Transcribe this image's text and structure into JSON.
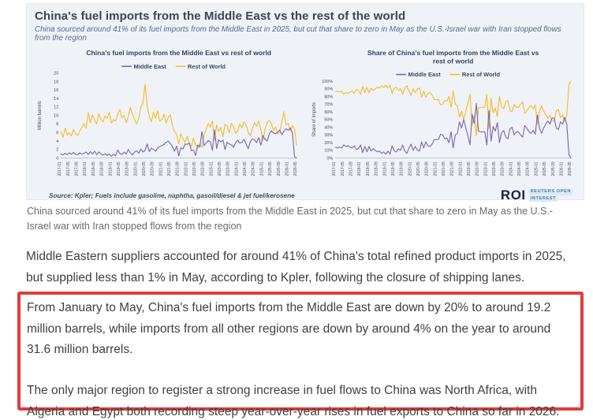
{
  "colors": {
    "accent_red": "#e03c3c",
    "middle_east_line": "#7a68ab",
    "rest_of_world_line": "#f3bd2b",
    "card_background": "#eff2f7"
  },
  "figure": {
    "title": "China's fuel imports from the Middle East vs the rest of the world",
    "subtitle": "China sourced around 41% of its fuel imports from the Middle East in 2025, but cut that share to zero in May as the U.S.-Israel war with Iran stopped flows from the region",
    "source": "Source:  Kpler; Fuels include gasoline, naphtha, gasoil/diesel & jet fuel/kerosene",
    "logo": {
      "roi": "ROI",
      "line1": "REUTERS OPEN",
      "line2": "INTEREST"
    }
  },
  "caption": "China sourced around 41% of its fuel imports from the Middle East in 2025, but cut that share to zero in May as the U.S.-Israel war with Iran stopped flows from the region",
  "paragraphs": {
    "p1": "Middle Eastern suppliers accounted for around 41% of China's total refined product imports in 2025, but supplied less than 1% in May, according to Kpler, following the closure of shipping lanes.",
    "p2": "From January to May, China's fuel imports from the Middle East are down by 20% to around 19.2 million barrels, while imports from all other regions are down by around 4% on the year to around 31.6 million barrels.",
    "p3": "The only major region to register a strong increase in fuel flows to China was North Africa, with Algeria and Egypt both recording steep year-over-year rises in fuel exports to China so far in 2026."
  },
  "chart_data": [
    {
      "type": "line",
      "title": "China's fuel imports from the Middle East vs rest of world",
      "title_lines": [
        "China's fuel imports from the Middle East vs rest of world"
      ],
      "ylabel": "Million barrels",
      "ylim": [
        0,
        20
      ],
      "ytick_step": 2,
      "ytick_suffix": "",
      "legend_position": "top",
      "grid": false,
      "points_per_tick": 4,
      "x_ticks": [
        "2017-01",
        "2017-05",
        "2017-09",
        "2018-01",
        "2018-05",
        "2018-09",
        "2019-01",
        "2019-05",
        "2019-09",
        "2020-01",
        "2020-05",
        "2020-09",
        "2021-01",
        "2021-05",
        "2021-09",
        "2022-01",
        "2022-05",
        "2022-09",
        "2023-01",
        "2023-05",
        "2023-09",
        "2024-01",
        "2024-05",
        "2024-09",
        "2025-01",
        "2025-05",
        "2025-09",
        "2026-01",
        "2026-05"
      ],
      "series": [
        {
          "name": "Middle East",
          "color": "#7a68ab",
          "values": [
            1.0,
            0.7,
            1.1,
            0.8,
            1.2,
            0.9,
            1.3,
            0.9,
            0.8,
            1.2,
            0.9,
            1.1,
            1.4,
            0.8,
            1.5,
            0.9,
            1.6,
            0.8,
            1.4,
            1.0,
            0.7,
            1.0,
            0.6,
            0.9,
            0.4,
            0.9,
            0.5,
            1.9,
            1.1,
            0.8,
            1.4,
            0.9,
            2.0,
            1.2,
            0.7,
            1.4,
            1.7,
            1.1,
            2.1,
            1.4,
            1.8,
            3.3,
            1.5,
            2.3,
            2.0,
            1.6,
            2.4,
            2.7,
            2.9,
            3.2,
            3.7,
            4.0,
            3.4,
            2.7,
            1.6,
            2.8,
            0.5,
            2.4,
            2.1,
            3.3,
            3.2,
            3.5,
            1.7,
            1.9,
            0.6,
            3.1,
            2.6,
            6.2,
            2.9,
            3.5,
            4.1,
            3.8,
            1.8,
            6.6,
            2.2,
            4.3,
            3.8,
            4.2,
            2.0,
            3.7,
            3.3,
            3.1,
            2.5,
            3.6,
            4.2,
            3.5,
            3.7,
            4.4,
            3.3,
            2.2,
            3.8,
            4.5,
            4.3,
            3.6,
            4.8,
            3.0,
            5.3,
            4.4,
            4.0,
            5.6,
            6.4,
            5.9,
            5.7,
            6.1,
            6.6,
            5.5,
            6.3,
            6.9,
            6.5,
            7.1,
            5.9,
            0.3,
            0.0
          ]
        },
        {
          "name": "Rest of World",
          "color": "#f3bd2b",
          "values": [
            6.2,
            4.8,
            7.0,
            5.4,
            6.0,
            5.2,
            6.7,
            5.7,
            5.3,
            6.4,
            7.3,
            8.1,
            7.0,
            10.7,
            8.3,
            10.1,
            9.0,
            8.0,
            10.4,
            9.1,
            8.5,
            9.9,
            9.3,
            10.7,
            8.2,
            9.0,
            8.7,
            10.3,
            11.4,
            9.5,
            10.1,
            8.3,
            9.7,
            11.9,
            10.4,
            9.0,
            8.0,
            9.4,
            12.0,
            12.9,
            17.4,
            12.4,
            9.7,
            8.5,
            10.8,
            9.3,
            11.1,
            8.7,
            9.0,
            10.3,
            8.2,
            9.5,
            10.2,
            7.7,
            6.3,
            5.5,
            3.3,
            5.7,
            4.5,
            3.7,
            5.1,
            3.5,
            2.7,
            4.7,
            3.0,
            2.3,
            3.2,
            2.5,
            5.3,
            6.7,
            8.1,
            7.3,
            8.7,
            4.1,
            7.8,
            6.3,
            7.2,
            5.0,
            7.9,
            7.6,
            5.9,
            8.2,
            7.4,
            5.8,
            6.4,
            8.0,
            7.1,
            8.5,
            7.8,
            6.1,
            5.2,
            6.9,
            8.3,
            7.5,
            8.7,
            6.7,
            4.1,
            6.8,
            8.4,
            8.9,
            8.1,
            6.5,
            7.3,
            5.7,
            6.0,
            8.6,
            10.9,
            7.8,
            8.2,
            6.4,
            7.6,
            6.9,
            3.0
          ]
        }
      ]
    },
    {
      "type": "line",
      "title": "Share of China's fuel imports from the Middle East vs rest of world",
      "title_lines": [
        "Share of China's fuel imports from the Middle East vs",
        "rest of world"
      ],
      "ylabel": "Share of imports",
      "ylim": [
        0,
        100
      ],
      "ytick_step": 10,
      "ytick_suffix": "%",
      "legend_position": "top",
      "grid": false,
      "points_per_tick": 4,
      "x_ticks": [
        "2017-01",
        "2017-05",
        "2017-09",
        "2018-01",
        "2018-05",
        "2018-09",
        "2019-01",
        "2019-05",
        "2019-09",
        "2020-01",
        "2020-05",
        "2020-09",
        "2021-01",
        "2021-05",
        "2021-09",
        "2022-01",
        "2022-05",
        "2022-09",
        "2023-01",
        "2023-05",
        "2023-09",
        "2024-01",
        "2024-05",
        "2024-09",
        "2025-01",
        "2025-05",
        "2025-09",
        "2026-01",
        "2026-05"
      ],
      "series": [
        {
          "name": "Middle East",
          "color": "#7a68ab",
          "values": [
            14,
            13,
            14,
            13,
            17,
            15,
            16,
            14,
            13,
            16,
            11,
            12,
            17,
            7,
            15,
            8,
            15,
            9,
            12,
            10,
            8,
            9,
            6,
            8,
            5,
            9,
            5,
            16,
            9,
            8,
            12,
            10,
            17,
            9,
            6,
            13,
            18,
            10,
            15,
            10,
            9,
            21,
            13,
            21,
            16,
            15,
            18,
            24,
            24,
            24,
            31,
            30,
            25,
            26,
            20,
            34,
            13,
            30,
            32,
            47,
            39,
            50,
            39,
            29,
            17,
            57,
            45,
            71,
            35,
            34,
            34,
            34,
            17,
            62,
            22,
            41,
            35,
            46,
            20,
            33,
            36,
            27,
            25,
            38,
            40,
            30,
            34,
            34,
            30,
            27,
            42,
            39,
            34,
            32,
            36,
            31,
            56,
            39,
            32,
            39,
            44,
            48,
            44,
            52,
            52,
            39,
            37,
            47,
            44,
            53,
            44,
            4,
            0
          ]
        },
        {
          "name": "Rest of World",
          "color": "#f3bd2b",
          "values": [
            86,
            87,
            86,
            87,
            83,
            85,
            84,
            86,
            87,
            84,
            89,
            88,
            83,
            93,
            85,
            92,
            85,
            91,
            88,
            90,
            92,
            91,
            94,
            92,
            95,
            91,
            95,
            84,
            91,
            92,
            88,
            90,
            83,
            91,
            94,
            87,
            82,
            90,
            85,
            90,
            91,
            79,
            87,
            79,
            84,
            85,
            82,
            76,
            76,
            76,
            69,
            70,
            75,
            74,
            80,
            66,
            87,
            70,
            68,
            53,
            61,
            50,
            61,
            71,
            83,
            43,
            55,
            29,
            65,
            66,
            66,
            66,
            83,
            38,
            78,
            59,
            65,
            54,
            80,
            67,
            64,
            73,
            75,
            62,
            60,
            70,
            66,
            66,
            70,
            73,
            58,
            61,
            66,
            68,
            64,
            69,
            44,
            61,
            68,
            61,
            56,
            52,
            56,
            48,
            48,
            61,
            63,
            53,
            56,
            47,
            56,
            96,
            100
          ]
        }
      ]
    }
  ]
}
